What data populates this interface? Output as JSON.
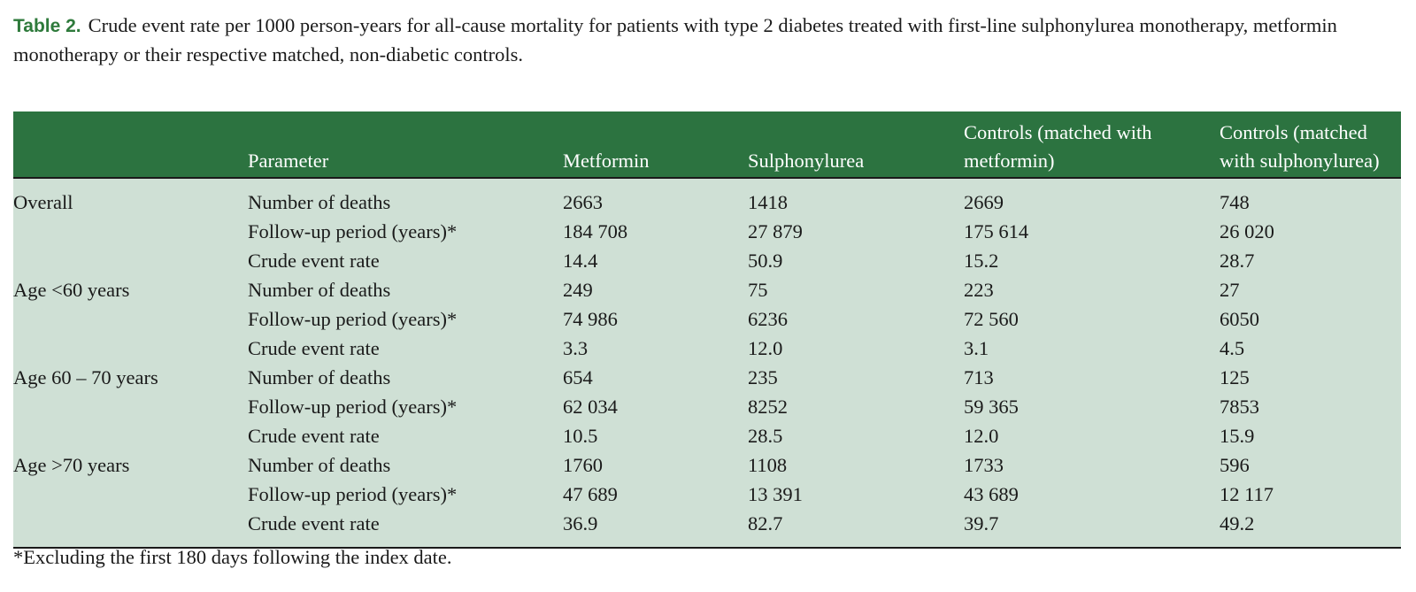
{
  "caption": {
    "label": "Table 2.",
    "text": "Crude event rate per 1000 person-years for all-cause mortality for patients with type 2 diabetes treated with first-line sulphonylurea monotherapy, metformin monotherapy or their respective matched, non-diabetic controls."
  },
  "table": {
    "headers": [
      "",
      "Parameter",
      "Metformin",
      "Sulphonylurea",
      "Controls (matched with metformin)",
      "Controls (matched with sulphonylurea)"
    ],
    "rows": [
      [
        "Overall",
        "Number of deaths",
        "2663",
        "1418",
        "2669",
        "748"
      ],
      [
        "",
        "Follow-up period (years)*",
        "184 708",
        "27 879",
        "175 614",
        "26 020"
      ],
      [
        "",
        "Crude event rate",
        "14.4",
        "50.9",
        "15.2",
        "28.7"
      ],
      [
        "Age <60 years",
        "Number of deaths",
        "249",
        "75",
        "223",
        "27"
      ],
      [
        "",
        "Follow-up period (years)*",
        "74 986",
        "6236",
        "72 560",
        "6050"
      ],
      [
        "",
        "Crude event rate",
        "3.3",
        "12.0",
        "3.1",
        "4.5"
      ],
      [
        "Age 60 – 70 years",
        "Number of deaths",
        "654",
        "235",
        "713",
        "125"
      ],
      [
        "",
        "Follow-up period (years)*",
        "62 034",
        "8252",
        "59 365",
        "7853"
      ],
      [
        "",
        "Crude event rate",
        "10.5",
        "28.5",
        "12.0",
        "15.9"
      ],
      [
        "Age >70 years",
        "Number of deaths",
        "1760",
        "1108",
        "1733",
        "596"
      ],
      [
        "",
        "Follow-up period (years)*",
        "47 689",
        "13 391",
        "43 689",
        "12 117"
      ],
      [
        "",
        "Crude event rate",
        "36.9",
        "82.7",
        "39.7",
        "49.2"
      ]
    ]
  },
  "footnote": "*Excluding the first 180 days following the index date.",
  "colors": {
    "header_bg": "#2c7340",
    "body_bg": "#cfe0d5",
    "label": "#2e7a3b"
  }
}
